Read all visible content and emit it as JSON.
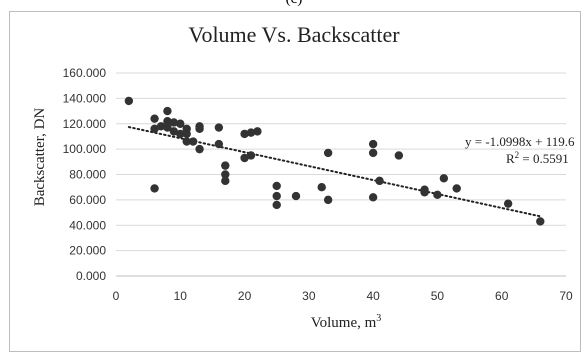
{
  "figure": {
    "panel_label": "(c)"
  },
  "chart_data": {
    "type": "scatter",
    "title": "Volume Vs. Backscatter",
    "xlabel": "Volume, m",
    "xlabel_sup": "3",
    "ylabel": "Backscatter, DN",
    "xlim": [
      0,
      70
    ],
    "ylim": [
      0,
      160
    ],
    "xticks": [
      0,
      10,
      20,
      30,
      40,
      50,
      60,
      70
    ],
    "yticks": [
      0,
      20,
      40,
      60,
      80,
      100,
      120,
      140,
      160
    ],
    "ytick_labels": [
      "0.000",
      "20.000",
      "40.000",
      "60.000",
      "80.000",
      "100.000",
      "120.000",
      "140.000",
      "160.000"
    ],
    "grid": "horizontal",
    "legend": "none",
    "marker_color": "#333333",
    "points": [
      {
        "x": 2,
        "y": 138
      },
      {
        "x": 6,
        "y": 69
      },
      {
        "x": 6,
        "y": 124
      },
      {
        "x": 6,
        "y": 116
      },
      {
        "x": 7,
        "y": 118
      },
      {
        "x": 8,
        "y": 130
      },
      {
        "x": 8,
        "y": 122
      },
      {
        "x": 8,
        "y": 117
      },
      {
        "x": 9,
        "y": 121
      },
      {
        "x": 9,
        "y": 114
      },
      {
        "x": 10,
        "y": 120
      },
      {
        "x": 10,
        "y": 112
      },
      {
        "x": 11,
        "y": 116
      },
      {
        "x": 11,
        "y": 112
      },
      {
        "x": 11,
        "y": 106
      },
      {
        "x": 12,
        "y": 106
      },
      {
        "x": 13,
        "y": 118
      },
      {
        "x": 13,
        "y": 116
      },
      {
        "x": 13,
        "y": 100
      },
      {
        "x": 16,
        "y": 117
      },
      {
        "x": 16,
        "y": 104
      },
      {
        "x": 17,
        "y": 87
      },
      {
        "x": 17,
        "y": 80
      },
      {
        "x": 17,
        "y": 75
      },
      {
        "x": 20,
        "y": 112
      },
      {
        "x": 20,
        "y": 93
      },
      {
        "x": 21,
        "y": 113
      },
      {
        "x": 21,
        "y": 95
      },
      {
        "x": 22,
        "y": 114
      },
      {
        "x": 25,
        "y": 71
      },
      {
        "x": 25,
        "y": 63
      },
      {
        "x": 25,
        "y": 56
      },
      {
        "x": 28,
        "y": 63
      },
      {
        "x": 32,
        "y": 70
      },
      {
        "x": 33,
        "y": 97
      },
      {
        "x": 33,
        "y": 60
      },
      {
        "x": 40,
        "y": 104
      },
      {
        "x": 40,
        "y": 97
      },
      {
        "x": 40,
        "y": 62
      },
      {
        "x": 41,
        "y": 75
      },
      {
        "x": 44,
        "y": 95
      },
      {
        "x": 48,
        "y": 68
      },
      {
        "x": 48,
        "y": 66
      },
      {
        "x": 50,
        "y": 64
      },
      {
        "x": 51,
        "y": 77
      },
      {
        "x": 53,
        "y": 69
      },
      {
        "x": 61,
        "y": 57
      },
      {
        "x": 66,
        "y": 43
      }
    ],
    "trendline": {
      "slope": -1.0998,
      "intercept": 119.6,
      "x_range": [
        2,
        66
      ],
      "style": "dotted"
    },
    "annotations": {
      "equation": "y = -1.0998x + 119.6",
      "r2_prefix": "R",
      "r2_sup": "2",
      "r2_value": " = 0.5591"
    }
  }
}
